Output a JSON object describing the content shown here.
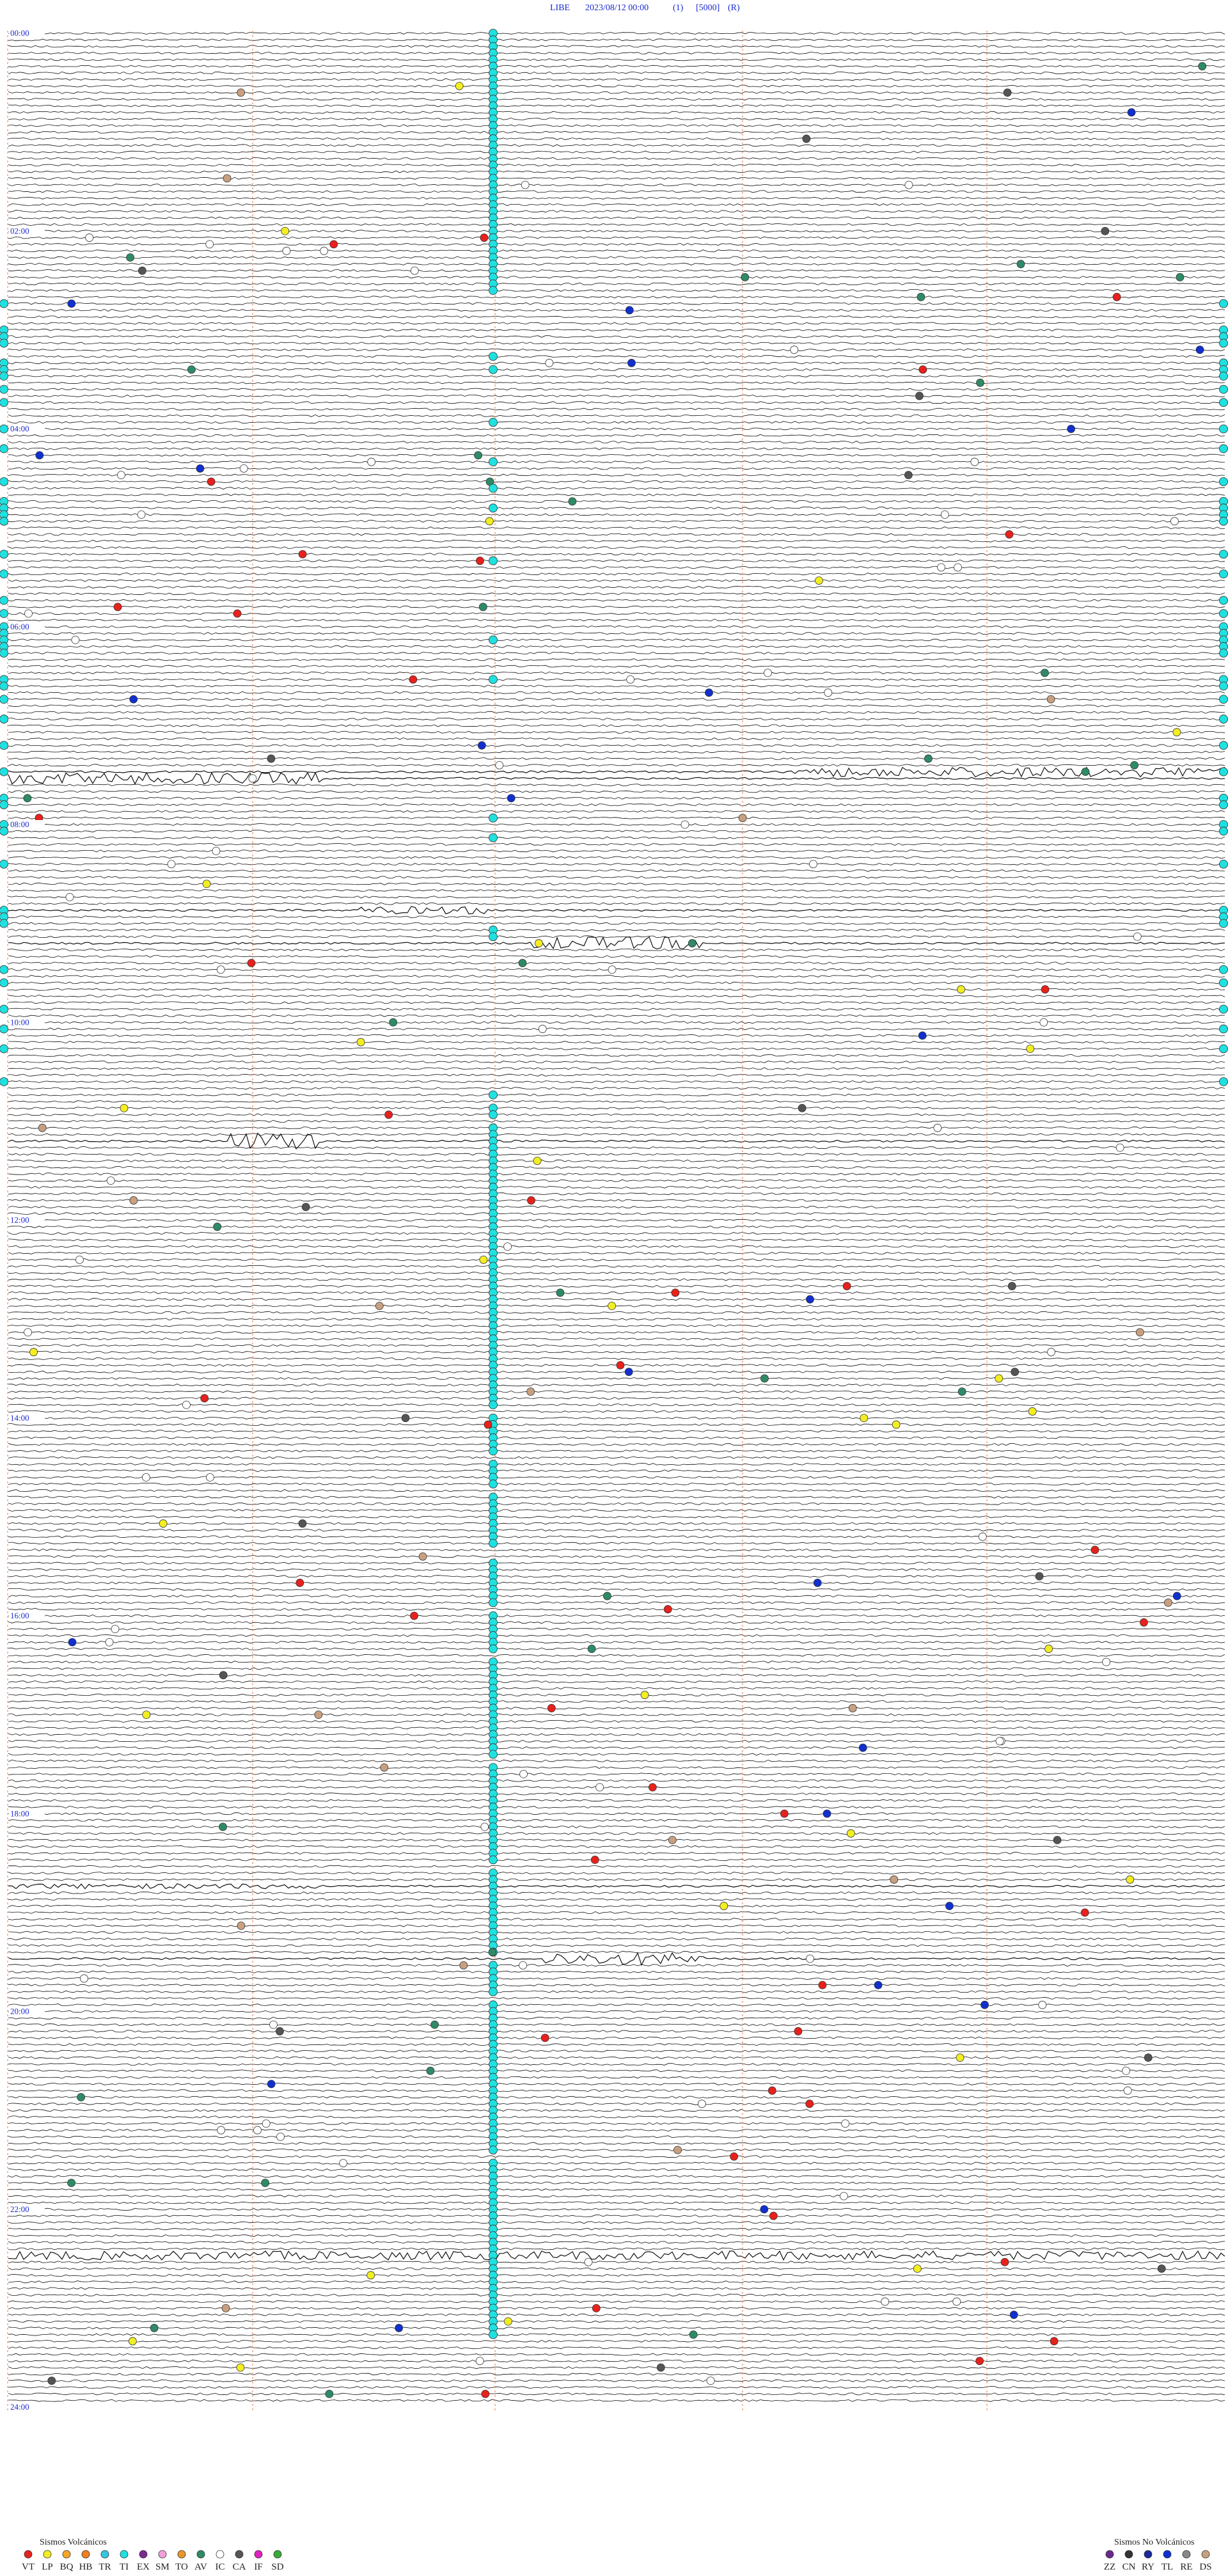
{
  "header": {
    "station": "LIBE",
    "datetime": "2023/08/12 00:00",
    "channel": "(1)",
    "scale": "[5000]",
    "mode": "(R)"
  },
  "time_labels": [
    "00:00",
    "02:00",
    "04:00",
    "06:00",
    "08:00",
    "10:00",
    "12:00",
    "14:00",
    "16:00",
    "18:00",
    "20:00",
    "22:00",
    "24:00"
  ],
  "legend": {
    "volcanic": {
      "title": "Sismos Volcánicos",
      "items": [
        {
          "code": "VT",
          "color": "#e8211c"
        },
        {
          "code": "LP",
          "color": "#f2ee22"
        },
        {
          "code": "BQ",
          "color": "#f5a623"
        },
        {
          "code": "HB",
          "color": "#f07f1e"
        },
        {
          "code": "TR",
          "color": "#35c6e0"
        },
        {
          "code": "TI",
          "color": "#20e0e0"
        },
        {
          "code": "EX",
          "color": "#7b2a8e"
        },
        {
          "code": "SM",
          "color": "#f0a0d8"
        },
        {
          "code": "TO",
          "color": "#e8962a"
        },
        {
          "code": "AV",
          "color": "#2e8b66"
        },
        {
          "code": "IC",
          "color": "#ffffff"
        },
        {
          "code": "CA",
          "color": "#555555"
        },
        {
          "code": "IF",
          "color": "#e020c0"
        },
        {
          "code": "SD",
          "color": "#3aaa3a"
        }
      ]
    },
    "non_volcanic": {
      "title": "Sismos No Volcánicos",
      "items": [
        {
          "code": "ZZ",
          "color": "#6a2a8a"
        },
        {
          "code": "CN",
          "color": "#333333"
        },
        {
          "code": "RY",
          "color": "#1a2a9a"
        },
        {
          "code": "TL",
          "color": "#1030d0"
        },
        {
          "code": "RE",
          "color": "#888888"
        },
        {
          "code": "DS",
          "color": "#c8a080"
        }
      ]
    }
  }
}
